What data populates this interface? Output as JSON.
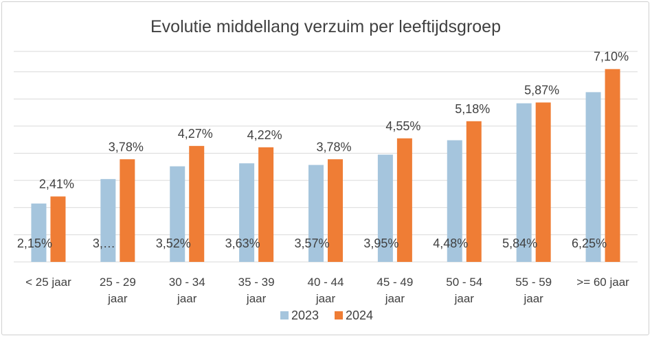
{
  "chart_data": {
    "type": "bar",
    "title": "Evolutie middellang verzuim per leeftijdsgroep",
    "xlabel": "",
    "ylabel": "",
    "categories": [
      [
        "< 25 jaar"
      ],
      [
        "25 - 29",
        "jaar"
      ],
      [
        "30 - 34",
        "jaar"
      ],
      [
        "35 - 39",
        "jaar"
      ],
      [
        "40 - 44",
        "jaar"
      ],
      [
        "45 - 49",
        "jaar"
      ],
      [
        "50 - 54",
        "jaar"
      ],
      [
        "55 - 59",
        "jaar"
      ],
      [
        ">= 60 jaar"
      ]
    ],
    "series": [
      {
        "name": "2023",
        "color": "#a5c5dd",
        "values": [
          2.15,
          3.05,
          3.52,
          3.63,
          3.57,
          3.95,
          4.48,
          5.84,
          6.25
        ],
        "labels": [
          "2,15%",
          "3,…",
          "3,52%",
          "3,63%",
          "3,57%",
          "3,95%",
          "4,48%",
          "5,84%",
          "6,25%"
        ]
      },
      {
        "name": "2024",
        "color": "#ef7d35",
        "values": [
          2.41,
          3.78,
          4.27,
          4.22,
          3.78,
          4.55,
          5.18,
          5.87,
          7.1
        ],
        "labels": [
          "2,41%",
          "3,78%",
          "4,27%",
          "4,22%",
          "3,78%",
          "4,55%",
          "5,18%",
          "5,87%",
          "7,10%"
        ]
      }
    ],
    "ylim": [
      0,
      7.75
    ],
    "grid": true,
    "legend": "bottom"
  }
}
